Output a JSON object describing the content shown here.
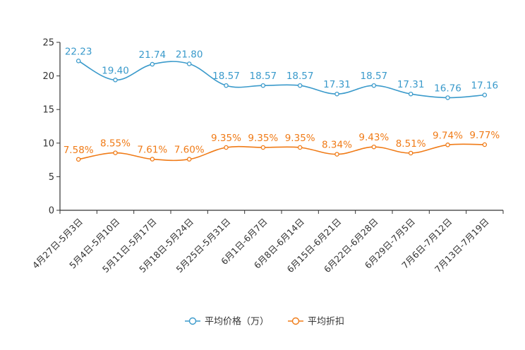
{
  "chart_data": {
    "type": "line",
    "title": "",
    "xlabel": "",
    "ylabel": "",
    "ylim": [
      0,
      25
    ],
    "yticks": [
      0,
      5,
      10,
      15,
      20,
      25
    ],
    "grid": false,
    "legend_position": "bottom-center",
    "categories": [
      "4月27日-5月3日",
      "5月4日-5月10日",
      "5月11日-5月17日",
      "5月18日-5月24日",
      "5月25日-5月31日",
      "6月1日-6月7日",
      "6月8日-6月14日",
      "6月15日-6月21日",
      "6月22日-6月28日",
      "6月29日-7月5日",
      "7月6日-7月12日",
      "7月13日-7月19日"
    ],
    "series": [
      {
        "name": "平均价格（万）",
        "color": "#3a9acb",
        "values": [
          22.23,
          19.4,
          21.74,
          21.8,
          18.57,
          18.57,
          18.57,
          17.31,
          18.57,
          17.31,
          16.76,
          17.16
        ],
        "labels": [
          "22.23",
          "19.40",
          "21.74",
          "21.80",
          "18.57",
          "18.57",
          "18.57",
          "17.31",
          "18.57",
          "17.31",
          "16.76",
          "17.16"
        ]
      },
      {
        "name": "平均折扣",
        "color": "#f07b17",
        "values": [
          7.58,
          8.55,
          7.61,
          7.6,
          9.35,
          9.35,
          9.35,
          8.34,
          9.43,
          8.51,
          9.74,
          9.77
        ],
        "labels": [
          "7.58%",
          "8.55%",
          "7.61%",
          "7.60%",
          "9.35%",
          "9.35%",
          "9.35%",
          "8.34%",
          "9.43%",
          "8.51%",
          "9.74%",
          "9.77%"
        ]
      }
    ]
  }
}
